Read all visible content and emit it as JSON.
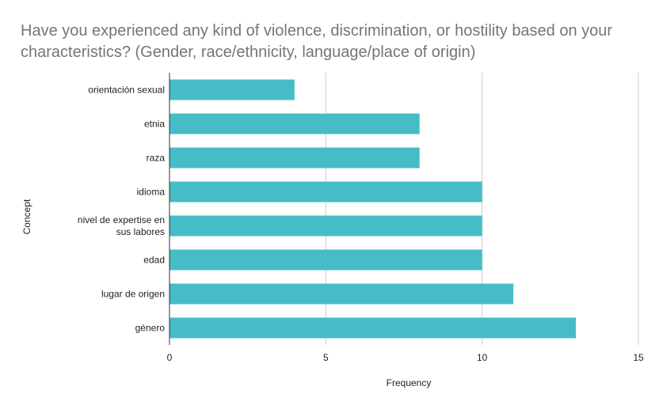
{
  "chart_data": {
    "type": "bar",
    "orientation": "horizontal",
    "title": "Have you experienced any kind of violence, discrimination, or hostility based on your characteristics? (Gender, race/ethnicity, language/place of origin)",
    "xlabel": "Frequency",
    "ylabel": "Concept",
    "categories": [
      "orientación sexual",
      "etnia",
      "raza",
      "idioma",
      "nivel de expertise en sus labores",
      "edad",
      "lugar de origen",
      "género"
    ],
    "values": [
      4,
      8,
      8,
      10,
      10,
      10,
      11,
      13
    ],
    "xlim": [
      0,
      15
    ],
    "xticks": [
      0,
      5,
      10,
      15
    ],
    "grid": true,
    "legend": "none",
    "bar_color": "#46bdc6",
    "grid_color": "#cccccc",
    "axis_color": "#333333"
  }
}
